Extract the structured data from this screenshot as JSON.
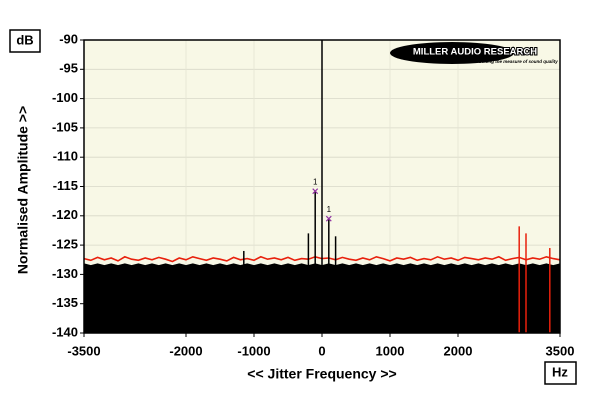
{
  "chart_data": {
    "type": "spectrum",
    "x_label": "<< Jitter Frequency >>",
    "y_label": "Normalised Amplitude >>",
    "y_unit": "dB",
    "x_unit": "Hz",
    "logo": {
      "text": "MILLER AUDIO RESEARCH",
      "tagline": "Getting the measure of sound quality"
    },
    "xlim": [
      -3500,
      3500
    ],
    "xticks": [
      -3500,
      -2000,
      -1000,
      0,
      1000,
      2000,
      3500
    ],
    "ylim": [
      -140,
      -90
    ],
    "yticks": [
      -140,
      -135,
      -130,
      -125,
      -120,
      -115,
      -110,
      -105,
      -100,
      -95,
      -90
    ],
    "grid": true,
    "zero_line": true,
    "x": [
      -3500,
      -3400,
      -3300,
      -3200,
      -3100,
      -3000,
      -2900,
      -2800,
      -2700,
      -2600,
      -2500,
      -2400,
      -2300,
      -2200,
      -2100,
      -2000,
      -1900,
      -1800,
      -1700,
      -1600,
      -1500,
      -1400,
      -1300,
      -1200,
      -1100,
      -1000,
      -900,
      -800,
      -700,
      -600,
      -500,
      -400,
      -300,
      -200,
      -100,
      0,
      100,
      200,
      300,
      400,
      500,
      600,
      700,
      800,
      900,
      1000,
      1100,
      1200,
      1300,
      1400,
      1500,
      1600,
      1700,
      1800,
      1900,
      2000,
      2100,
      2200,
      2300,
      2400,
      2500,
      2600,
      2700,
      2800,
      2900,
      3000,
      3100,
      3200,
      3300,
      3400,
      3500
    ],
    "series": [
      {
        "color": "#000000",
        "fill": true,
        "values": [
          -128.2,
          -128.5,
          -128.2,
          -128.5,
          -128.2,
          -128.5,
          -128.2,
          -128.5,
          -128.2,
          -128.5,
          -128.2,
          -128.5,
          -128.2,
          -128.5,
          -128.2,
          -128.5,
          -128.2,
          -128.5,
          -128.2,
          -128.5,
          -128.2,
          -128.5,
          -128.2,
          -128.5,
          -128.2,
          -128.5,
          -128.2,
          -128.5,
          -128.2,
          -128.5,
          -128.2,
          -128.5,
          -128.2,
          -128.5,
          -128.2,
          -128.5,
          -128.2,
          -128.5,
          -128.2,
          -128.5,
          -128.2,
          -128.5,
          -128.2,
          -128.5,
          -128.2,
          -128.5,
          -128.2,
          -128.5,
          -128.2,
          -128.5,
          -128.2,
          -128.5,
          -128.2,
          -128.5,
          -128.2,
          -128.5,
          -128.2,
          -128.5,
          -128.2,
          -128.5,
          -128.2,
          -128.5,
          -128.2,
          -128.5,
          -128.2,
          -128.5,
          -128.2,
          -128.5,
          -128.2,
          -128.5,
          -128.2
        ]
      },
      {
        "color": "#e8200c",
        "fill": false,
        "values": [
          -127.3,
          -127.6,
          -127.1,
          -127.5,
          -127.2,
          -127.7,
          -127.0,
          -127.4,
          -127.6,
          -127.2,
          -127.5,
          -127.1,
          -127.4,
          -127.8,
          -127.2,
          -127.5,
          -127.0,
          -127.3,
          -127.6,
          -127.2,
          -127.4,
          -127.7,
          -127.1,
          -127.5,
          -127.3,
          -127.6,
          -127.0,
          -127.4,
          -127.2,
          -127.5,
          -127.1,
          -127.6,
          -127.3,
          -127.4,
          -127.0,
          -127.3,
          -127.2,
          -127.5,
          -127.1,
          -127.4,
          -127.6,
          -127.2,
          -127.5,
          -127.0,
          -127.3,
          -127.7,
          -127.2,
          -127.4,
          -127.1,
          -127.6,
          -127.3,
          -127.5,
          -127.0,
          -127.4,
          -127.2,
          -127.6,
          -127.1,
          -127.3,
          -127.5,
          -127.2,
          -127.4,
          -127.0,
          -127.6,
          -127.3,
          -127.1,
          -127.5,
          -127.2,
          -127.4,
          -127.0,
          -127.3,
          -127.5
        ]
      }
    ],
    "spikes": {
      "x": [
        -1150,
        -200,
        -100,
        100,
        200,
        2900,
        3000,
        3350
      ],
      "values": [
        -126,
        -123,
        -115.8,
        -120.5,
        -123.5,
        -121.8,
        -123,
        -125.5
      ],
      "colors": [
        "#000000",
        "#000000",
        "#000000",
        "#000000",
        "#000000",
        "#e8200c",
        "#e8200c",
        "#e8200c"
      ]
    },
    "annotations": [
      {
        "label": "1",
        "x": -100,
        "y": -115.8
      },
      {
        "label": "1",
        "x": 100,
        "y": -120.5
      }
    ]
  }
}
